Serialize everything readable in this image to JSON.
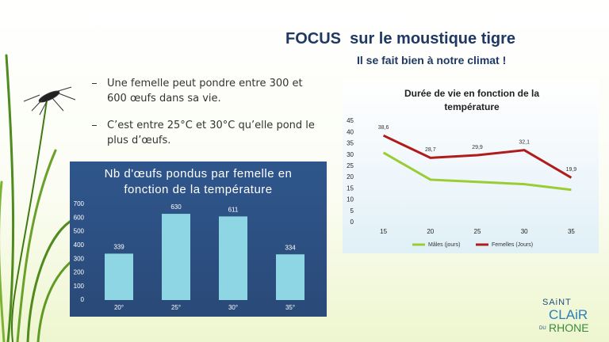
{
  "title": "FOCUS  sur le moustique tigre",
  "subtitle": "Il se fait bien à notre climat !",
  "bullets": [
    "Une femelle peut pondre entre 300 et 600 œufs dans sa vie.",
    "C’est entre 25°C et 30°C qu’elle pond le plus d’œufs."
  ],
  "logo": {
    "line1": "SAiNT",
    "line2": "CLAiR",
    "small": "DU",
    "line3": "RHONE"
  },
  "chart_data": [
    {
      "type": "bar",
      "title": "Nb d'œufs pondus par femelle en fonction de la température",
      "categories": [
        "20°",
        "25°",
        "30°",
        "35°"
      ],
      "values": [
        339,
        630,
        611,
        334
      ],
      "color": "#8fd6e4",
      "ylim": [
        0,
        700
      ],
      "yticks": [
        0,
        100,
        200,
        300,
        400,
        500,
        600,
        700
      ],
      "grid": false
    },
    {
      "type": "line",
      "title": "Durée de vie en fonction de la température",
      "categories": [
        "15",
        "20",
        "25",
        "30",
        "35"
      ],
      "series": [
        {
          "name": "Mâles (jours)",
          "color": "#9acd32",
          "values": [
            31,
            19,
            18,
            17,
            14.5
          ]
        },
        {
          "name": "Femelles (Jours)",
          "color": "#b01c1c",
          "values": [
            38.6,
            28.7,
            29.9,
            32.1,
            19.9
          ],
          "value_labels": [
            "38,6",
            "28,7",
            "29,9",
            "32,1",
            "19,9"
          ]
        }
      ],
      "ylim": [
        0,
        45
      ],
      "yticks": [
        0,
        5,
        10,
        15,
        20,
        25,
        30,
        35,
        40,
        45
      ],
      "grid": false,
      "legend": "bottom"
    }
  ]
}
